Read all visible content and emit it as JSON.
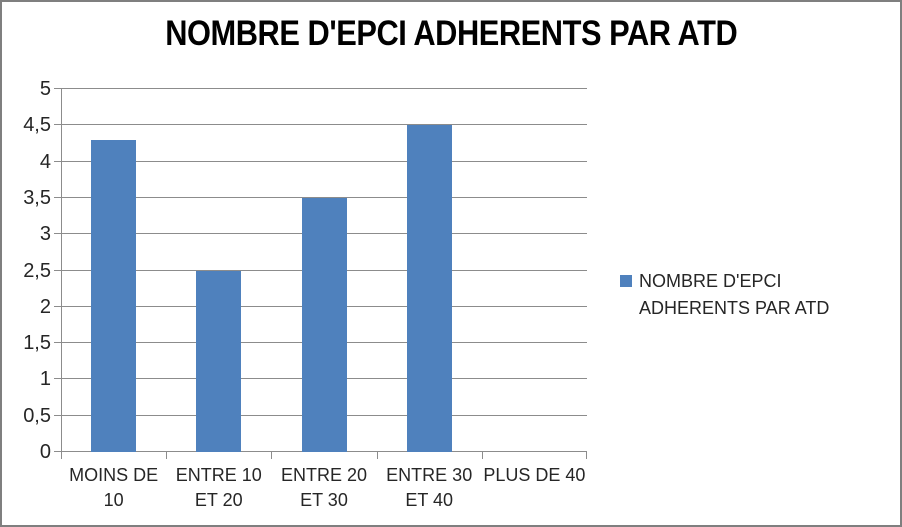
{
  "title": "NOMBRE D'EPCI ADHERENTS PAR ATD",
  "legend": {
    "label": "NOMBRE D'EPCI ADHERENTS PAR ATD",
    "marker_color": "#4F81BD"
  },
  "colors": {
    "bar": "#4F81BD",
    "gridline": "#8c8c8c",
    "axis": "#8c8c8c",
    "frame_border": "#7f7f7f",
    "text": "#262626",
    "title_text": "#000000"
  },
  "chart_data": {
    "type": "bar",
    "title": "NOMBRE D'EPCI ADHERENTS PAR ATD",
    "categories": [
      "MOINS DE 10",
      "ENTRE 10 ET 20",
      "ENTRE 20 ET 30",
      "ENTRE 30 ET 40",
      "PLUS DE 40"
    ],
    "category_tick_lines": [
      [
        "MOINS DE",
        "10"
      ],
      [
        "ENTRE 10",
        "ET 20"
      ],
      [
        "ENTRE 20",
        "ET 30"
      ],
      [
        "ENTRE 30",
        "ET 40"
      ],
      [
        "PLUS DE 40"
      ]
    ],
    "series": [
      {
        "name": "NOMBRE D'EPCI ADHERENTS PAR ATD",
        "values": [
          4.3,
          2.5,
          3.5,
          4.5,
          0
        ]
      }
    ],
    "xlabel": "",
    "ylabel": "",
    "ylim": [
      0,
      5
    ],
    "ytick_step": 0.5,
    "ytick_labels": [
      "0",
      "0,5",
      "1",
      "1,5",
      "2",
      "2,5",
      "3",
      "3,5",
      "4",
      "4,5",
      "5"
    ],
    "grid": true,
    "legend_position": "right",
    "decimal_separator": ","
  }
}
